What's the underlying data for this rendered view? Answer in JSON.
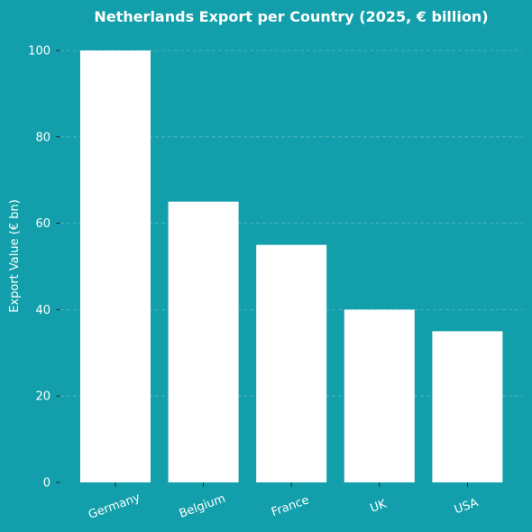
{
  "chart_data": {
    "type": "bar",
    "title": "Netherlands Export per Country (2025, € billion)",
    "xlabel": "",
    "ylabel": "Export Value (€ bn)",
    "categories": [
      "Germany",
      "Belgium",
      "France",
      "UK",
      "USA"
    ],
    "values": [
      100,
      65,
      55,
      40,
      35
    ],
    "ylim": [
      0,
      100
    ],
    "yticks": [
      0,
      20,
      40,
      60,
      80,
      100
    ],
    "ytick_labels": [
      "0",
      "20",
      "40",
      "60",
      "80",
      "100"
    ],
    "grid": true,
    "legend": false,
    "colors": {
      "background": "#129fab",
      "bar": "#ffffff",
      "text": "#ffffff"
    }
  }
}
